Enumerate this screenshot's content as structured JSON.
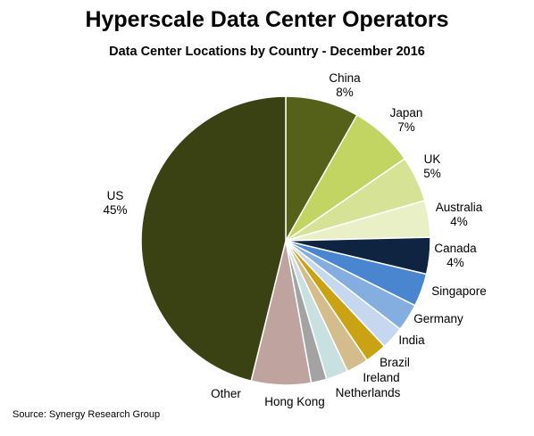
{
  "chart_data": {
    "type": "pie",
    "title": "Hyperscale Data Center Operators",
    "subtitle": "Data Center Locations by Country - December 2016",
    "source": "Source: Synergy Research Group",
    "start_angle_deg": 0,
    "direction": "clockwise",
    "slices": [
      {
        "label": "China",
        "value_label": "8%",
        "value": 8,
        "color": "#556019"
      },
      {
        "label": "Japan",
        "value_label": "7%",
        "value": 7,
        "color": "#c2d461"
      },
      {
        "label": "UK",
        "value_label": "5%",
        "value": 5,
        "color": "#d6e296"
      },
      {
        "label": "Australia",
        "value_label": "4%",
        "value": 4,
        "color": "#eaf0c6"
      },
      {
        "label": "Canada",
        "value_label": "4%",
        "value": 4,
        "color": "#0f2440"
      },
      {
        "label": "Singapore",
        "value_label": "",
        "value": 3.6,
        "color": "#4a86d0"
      },
      {
        "label": "Germany",
        "value_label": "",
        "value": 3,
        "color": "#85aee0"
      },
      {
        "label": "India",
        "value_label": "",
        "value": 2.5,
        "color": "#c6d8f0"
      },
      {
        "label": "Brazil",
        "value_label": "",
        "value": 2.4,
        "color": "#c9a313"
      },
      {
        "label": "Ireland",
        "value_label": "",
        "value": 2.4,
        "color": "#d4bc8c"
      },
      {
        "label": "Netherlands",
        "value_label": "",
        "value": 2.4,
        "color": "#c9e0e0"
      },
      {
        "label": "Hong Kong",
        "value_label": "",
        "value": 1.7,
        "color": "#a3a3a3"
      },
      {
        "label": "Other",
        "value_label": "",
        "value": 6.5,
        "color": "#bfa39f"
      },
      {
        "label": "US",
        "value_label": "45%",
        "value": 45,
        "color": "#3a4113"
      }
    ]
  }
}
